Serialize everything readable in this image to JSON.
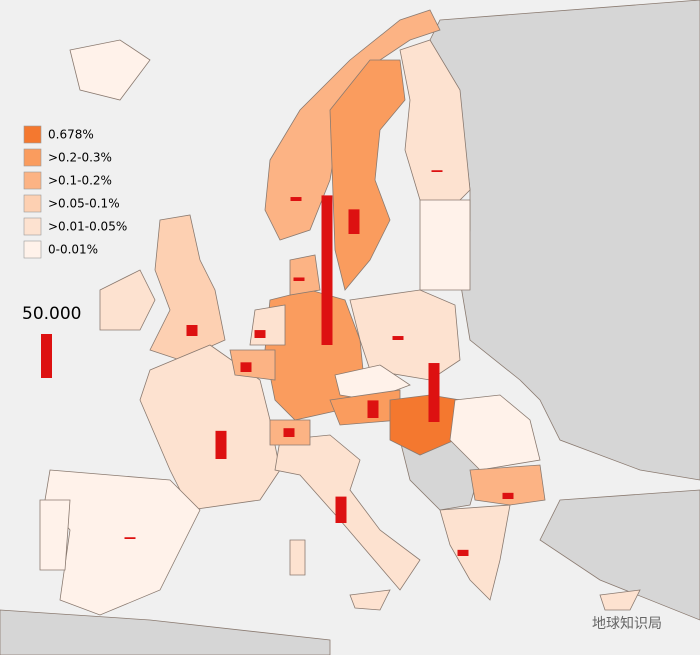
{
  "legend": {
    "items": [
      {
        "label": "0.678%",
        "color": "#f4782f"
      },
      {
        "label": ">0.2-0.3%",
        "color": "#fa9c5e"
      },
      {
        "label": ">0.1-0.2%",
        "color": "#fcb384"
      },
      {
        "label": ">0.05-0.1%",
        "color": "#fdd0b2"
      },
      {
        "label": ">0.01-0.05%",
        "color": "#fde2d0"
      },
      {
        "label": "0-0.01%",
        "color": "#fff2ea"
      }
    ]
  },
  "scale": {
    "value": 50000,
    "label": "50.000"
  },
  "bars": {
    "color": "#dd1111",
    "values": [
      170000,
      28000,
      67000,
      32000,
      30000,
      20000,
      12500,
      9000,
      11000,
      10000,
      4500,
      7000,
      7000,
      4500,
      2000,
      2000,
      4000
    ]
  },
  "watermark": "地球知识局"
}
